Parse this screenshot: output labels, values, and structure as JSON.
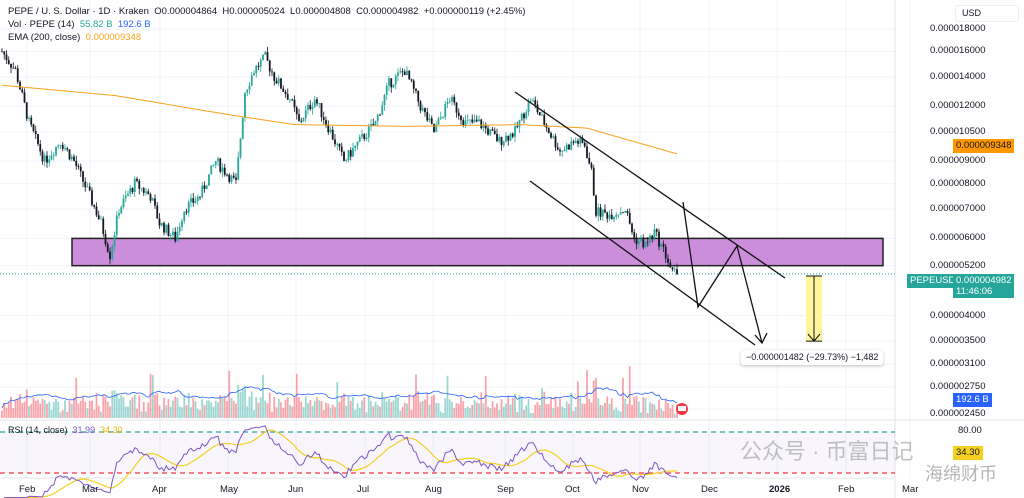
{
  "header": {
    "symbol_line": "PEPE / U. S. Dollar · 1D · Kraken",
    "open": "O0.000004864",
    "high": "H0.000005024",
    "low": "L0.000004808",
    "close": "C0.000004982",
    "change": "+0.000000119 (+2.45%)",
    "vol_label": "Vol · PEPE (14)",
    "vol_value": "55.82 B",
    "vol_ma": "192.6 B",
    "ema_label": "EMA (200, close)",
    "ema_value": "0.000009348"
  },
  "price_axis": {
    "currency": "USD",
    "ticks": [
      "0.000018000",
      "0.000016000",
      "0.000014000",
      "0.000012000",
      "0.000010500",
      "0.000009000",
      "0.000008000",
      "0.000007000",
      "0.000006000",
      "0.000005200",
      "0.000004000",
      "0.000003500",
      "0.000003100",
      "0.000002750",
      "0.000002450"
    ],
    "ema_tag": "0.000009348",
    "symbol_tag": "PEPEUSD",
    "price_tag": "0.000004982",
    "countdown": "11:46:06",
    "vol_tag": "192.6 B"
  },
  "rsi": {
    "label": "RSI (14, close)",
    "value": "31.99",
    "ma_value": "34.30",
    "level_80": "80.00",
    "tag": "34.30"
  },
  "measure": {
    "label": "−0.000001482 (−29.73%) −1,482"
  },
  "watermark": {
    "line1": "公众号 · 币富日记",
    "line2": "海绵财币"
  },
  "colors": {
    "up": "#26a69a",
    "down": "#131722",
    "ema": "#f7a21b",
    "zone": "#cc8ddb",
    "rsi": "#7e57c2",
    "rsi_ma": "#f5d020",
    "vol_ma": "#2962ff",
    "measure": "#fff59d"
  },
  "chart_data": {
    "type": "candlestick",
    "title": "PEPE / U. S. Dollar · 1D · Kraken",
    "x_ticks": [
      "Feb",
      "Mar",
      "Apr",
      "May",
      "Jun",
      "Jul",
      "Aug",
      "Sep",
      "Oct",
      "Nov",
      "Dec",
      "2026",
      "Feb",
      "Mar"
    ],
    "y_scale": "log",
    "ylim": [
      2.45e-06,
      1.8e-05
    ],
    "close_path_days_since_jan20": [
      [
        0,
        1.6e-05
      ],
      [
        6,
        1.45e-05
      ],
      [
        12,
        1.1e-05
      ],
      [
        19,
        9e-06
      ],
      [
        26,
        1e-05
      ],
      [
        32,
        9e-06
      ],
      [
        39,
        7.5e-06
      ],
      [
        44,
        6.5e-06
      ],
      [
        48,
        5.5e-06
      ],
      [
        52,
        7e-06
      ],
      [
        59,
        8e-06
      ],
      [
        66,
        7.5e-06
      ],
      [
        70,
        6.5e-06
      ],
      [
        77,
        6e-06
      ],
      [
        81,
        7e-06
      ],
      [
        88,
        7.5e-06
      ],
      [
        95,
        9e-06
      ],
      [
        104,
        8e-06
      ],
      [
        108,
        1.3e-05
      ],
      [
        112,
        1.45e-05
      ],
      [
        117,
        1.55e-05
      ],
      [
        121,
        1.4e-05
      ],
      [
        128,
        1.25e-05
      ],
      [
        132,
        1.1e-05
      ],
      [
        139,
        1.25e-05
      ],
      [
        146,
        1.05e-05
      ],
      [
        152,
        9e-06
      ],
      [
        159,
        1e-05
      ],
      [
        166,
        1.1e-05
      ],
      [
        172,
        1.35e-05
      ],
      [
        179,
        1.45e-05
      ],
      [
        186,
        1.2e-05
      ],
      [
        192,
        1.05e-05
      ],
      [
        199,
        1.25e-05
      ],
      [
        206,
        1.1e-05
      ],
      [
        212,
        1.1e-05
      ],
      [
        221,
        1e-05
      ],
      [
        228,
        1.05e-05
      ],
      [
        235,
        1.25e-05
      ],
      [
        241,
        1.1e-05
      ],
      [
        248,
        9.5e-06
      ],
      [
        255,
        1e-05
      ],
      [
        259,
        9.8e-06
      ],
      [
        262,
        8.5e-06
      ],
      [
        264,
        6.9e-06
      ],
      [
        270,
        6.8e-06
      ],
      [
        277,
        7e-06
      ],
      [
        281,
        6e-06
      ],
      [
        286,
        5.8e-06
      ],
      [
        290,
        6.2e-06
      ],
      [
        295,
        5.5e-06
      ],
      [
        298,
        5e-06
      ],
      [
        300,
        4.982e-06
      ]
    ],
    "ema200_path": [
      [
        0,
        1.34e-05
      ],
      [
        50,
        1.27e-05
      ],
      [
        100,
        1.15e-05
      ],
      [
        130,
        1.09e-05
      ],
      [
        180,
        1.08e-05
      ],
      [
        230,
        1.09e-05
      ],
      [
        260,
        1.07e-05
      ],
      [
        300,
        9.348e-06
      ]
    ],
    "support_zone": [
      5.2e-06,
      6e-06
    ],
    "projection_target": 3.5e-06,
    "measure_change_pct": -29.73
  }
}
